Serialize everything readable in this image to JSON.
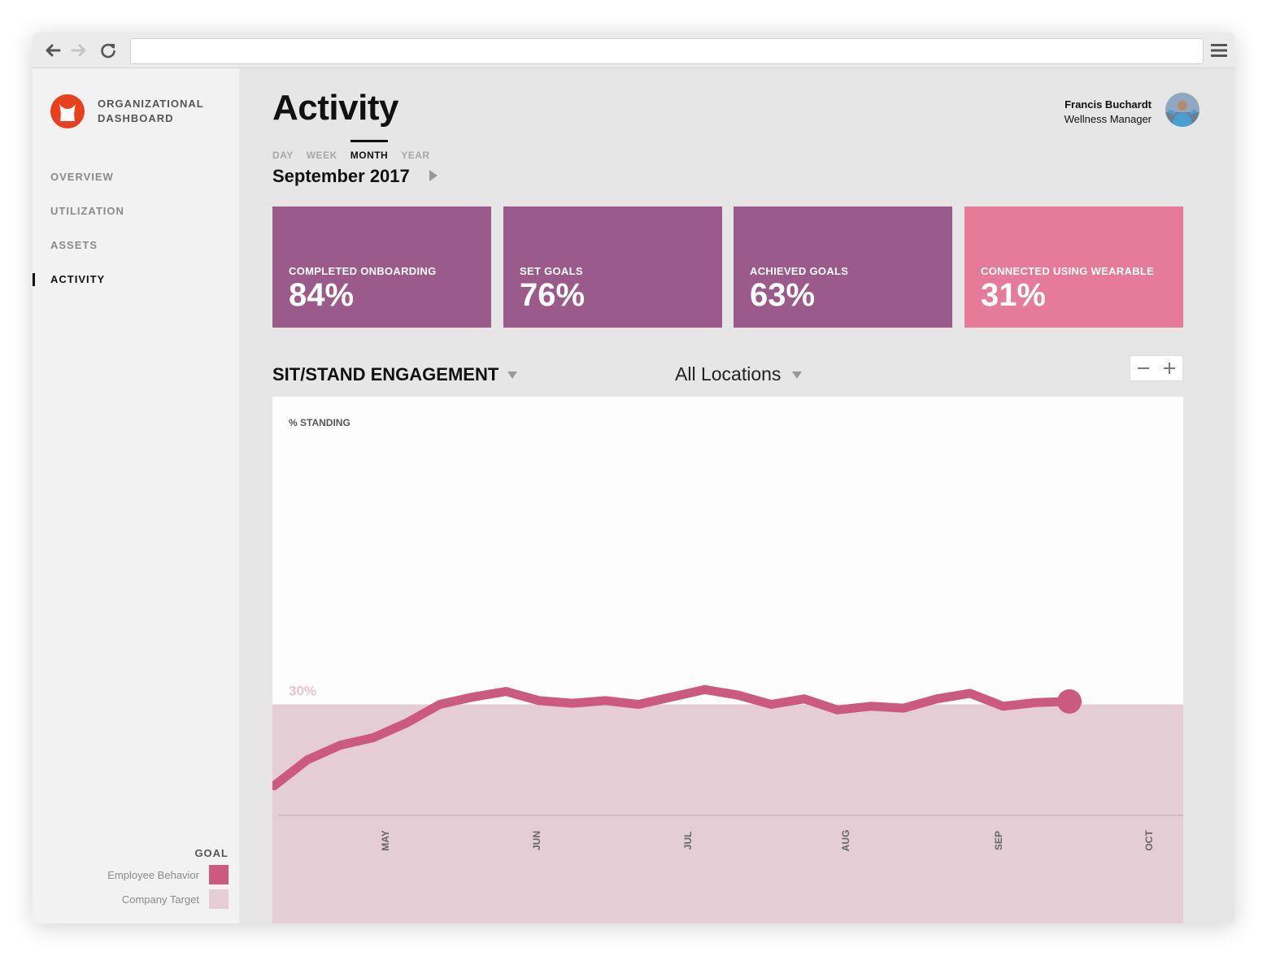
{
  "sidebar": {
    "brand_line1": "ORGANIZATIONAL",
    "brand_line2": "DASHBOARD",
    "nav": [
      "OVERVIEW",
      "UTILIZATION",
      "ASSETS",
      "ACTIVITY"
    ],
    "active_nav": "ACTIVITY",
    "legend": {
      "title": "GOAL",
      "items": [
        {
          "label": "Employee Behavior",
          "color": "#cc5a80"
        },
        {
          "label": "Company Target",
          "color": "#e5cdd6"
        }
      ]
    }
  },
  "header": {
    "title": "Activity",
    "user_name": "Francis Buchardt",
    "user_role": "Wellness Manager"
  },
  "period": {
    "tabs": [
      "DAY",
      "WEEK",
      "MONTH",
      "YEAR"
    ],
    "active": "MONTH",
    "date": "September 2017"
  },
  "metrics": [
    {
      "label": "COMPLETED ONBOARDING",
      "value": "84%",
      "color": "#9b5b8a"
    },
    {
      "label": "SET GOALS",
      "value": "76%",
      "color": "#9b5b8a"
    },
    {
      "label": "ACHIEVED GOALS",
      "value": "63%",
      "color": "#9b5b8a"
    },
    {
      "label": "CONNECTED USING WEARABLE",
      "value": "31%",
      "color": "#e57b98"
    }
  ],
  "chart_section": {
    "title": "SIT/STAND ENGAGEMENT",
    "location": "All Locations",
    "zoom_out": "−",
    "zoom_in": "+"
  },
  "chart_data": {
    "type": "area",
    "ylabel": "% STANDING",
    "target_label": "30%",
    "target": 30,
    "ylim": [
      0,
      100
    ],
    "x_ticks": [
      "MAY",
      "JUN",
      "JUL",
      "AUG",
      "SEP",
      "OCT"
    ],
    "series": [
      {
        "name": "Employee Behavior",
        "color": "#cc5a80",
        "values": [
          8,
          15,
          19,
          21,
          25,
          30,
          32,
          33.5,
          31,
          30.3,
          31,
          30,
          32,
          34,
          32.5,
          30,
          31.5,
          28.5,
          29.5,
          29,
          31.5,
          33,
          29.5,
          30.5,
          30.8
        ]
      }
    ],
    "target_color": "#e5cdd6",
    "legend": "bottom-left"
  }
}
